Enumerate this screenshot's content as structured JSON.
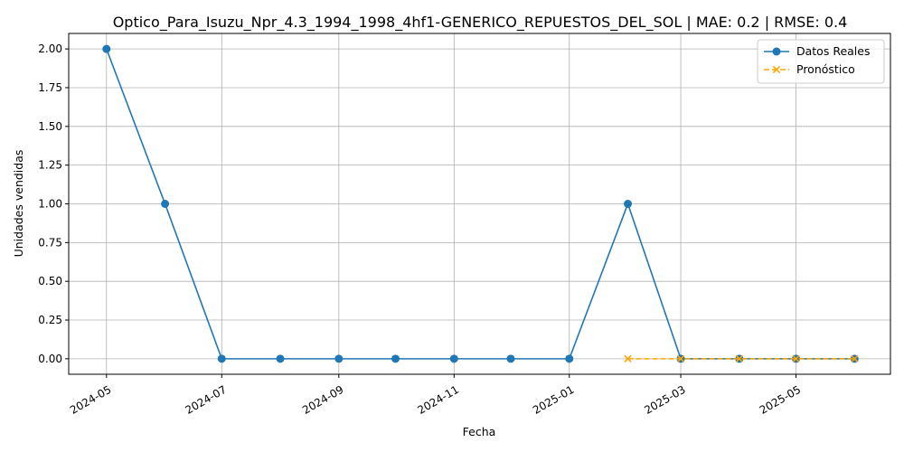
{
  "chart_data": {
    "type": "line",
    "title": "Optico_Para_Isuzu_Npr_4.3_1994_1998_4hf1-GENERICO_REPUESTOS_DEL_SOL | MAE: 0.2 | RMSE: 0.4",
    "xlabel": "Fecha",
    "ylabel": "Unidades vendidas",
    "grid": true,
    "legend_position": "top-right",
    "x_ticks": [
      "2024-05",
      "2024-07",
      "2024-09",
      "2024-11",
      "2025-01",
      "2025-03",
      "2025-05"
    ],
    "y_ticks": [
      "0.00",
      "0.25",
      "0.50",
      "0.75",
      "1.00",
      "1.25",
      "1.50",
      "1.75",
      "2.00"
    ],
    "ylim": [
      -0.1,
      2.1
    ],
    "xlim": [
      "2024-04-11",
      "2025-06-20"
    ],
    "series": [
      {
        "name": "Datos Reales",
        "color": "#1f77b4",
        "marker": "circle",
        "line_style": "solid",
        "points": [
          {
            "x": "2024-05-01",
            "y": 2
          },
          {
            "x": "2024-06-01",
            "y": 1
          },
          {
            "x": "2024-07-01",
            "y": 0
          },
          {
            "x": "2024-08-01",
            "y": 0
          },
          {
            "x": "2024-09-01",
            "y": 0
          },
          {
            "x": "2024-10-01",
            "y": 0
          },
          {
            "x": "2024-11-01",
            "y": 0
          },
          {
            "x": "2024-12-01",
            "y": 0
          },
          {
            "x": "2025-01-01",
            "y": 0
          },
          {
            "x": "2025-02-01",
            "y": 1
          },
          {
            "x": "2025-03-01",
            "y": 0
          },
          {
            "x": "2025-04-01",
            "y": 0
          },
          {
            "x": "2025-05-01",
            "y": 0
          },
          {
            "x": "2025-06-01",
            "y": 0
          }
        ]
      },
      {
        "name": "Pronóstico",
        "color": "#ffa500",
        "marker": "x",
        "line_style": "dashed",
        "points": [
          {
            "x": "2025-02-01",
            "y": 0
          },
          {
            "x": "2025-03-01",
            "y": 0
          },
          {
            "x": "2025-04-01",
            "y": 0
          },
          {
            "x": "2025-05-01",
            "y": 0
          },
          {
            "x": "2025-06-01",
            "y": 0
          }
        ]
      }
    ]
  }
}
